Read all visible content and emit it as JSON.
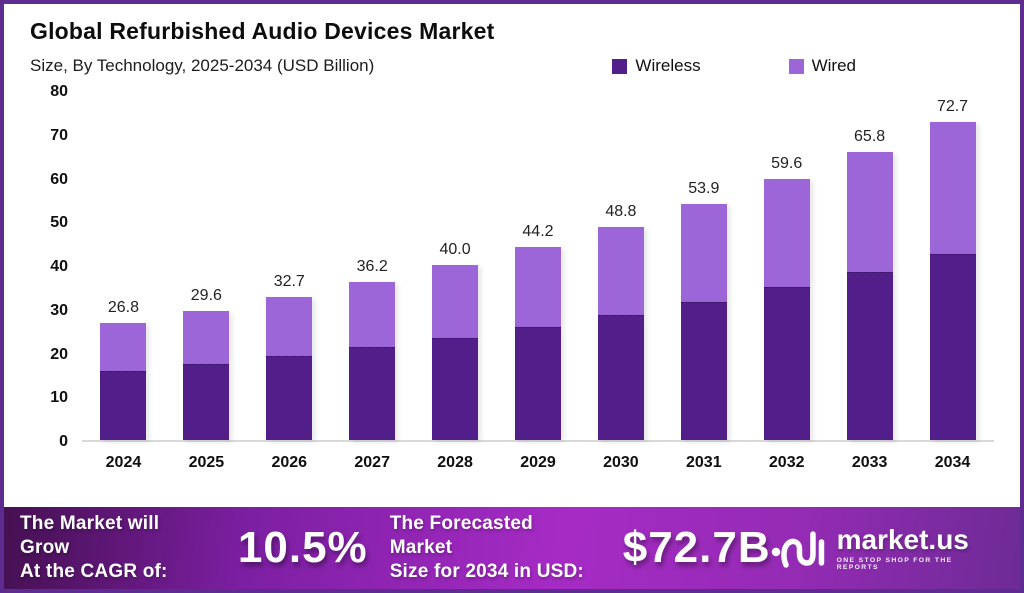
{
  "header": {
    "title": "Global Refurbished Audio Devices Market",
    "subtitle": "Size, By Technology, 2025-2034 (USD Billion)"
  },
  "legend": [
    {
      "label": "Wireless",
      "color": "#521e8a"
    },
    {
      "label": "Wired",
      "color": "#9d66d8"
    }
  ],
  "chart_data": {
    "type": "bar",
    "stacked": true,
    "title": "Global Refurbished Audio Devices Market",
    "subtitle": "Size, By Technology, 2025-2034 (USD Billion)",
    "unit": "USD Billion",
    "categories": [
      "2024",
      "2025",
      "2026",
      "2027",
      "2028",
      "2029",
      "2030",
      "2031",
      "2032",
      "2033",
      "2034"
    ],
    "series": [
      {
        "name": "Wireless",
        "color": "#521e8a",
        "values": [
          15.7,
          17.3,
          19.1,
          21.2,
          23.4,
          25.9,
          28.5,
          31.5,
          34.9,
          38.5,
          42.5
        ]
      },
      {
        "name": "Wired",
        "color": "#9d66d8",
        "values": [
          11.1,
          12.3,
          13.6,
          15.0,
          16.6,
          18.3,
          20.3,
          22.4,
          24.7,
          27.3,
          30.2
        ]
      }
    ],
    "totals": [
      26.8,
      29.6,
      32.7,
      36.2,
      40.0,
      44.2,
      48.8,
      53.9,
      59.6,
      65.8,
      72.7
    ],
    "total_labels": [
      "26.8",
      "29.6",
      "32.7",
      "36.2",
      "40.0",
      "44.2",
      "48.8",
      "53.9",
      "59.6",
      "65.8",
      "72.7"
    ],
    "ylim": [
      0,
      80
    ],
    "yticks": [
      0,
      10,
      20,
      30,
      40,
      50,
      60,
      70,
      80
    ],
    "grid": false,
    "legend_position": "top-right"
  },
  "footer": {
    "cagr_label_line1": "The Market will Grow",
    "cagr_label_line2": "At the CAGR of:",
    "cagr_value": "10.5%",
    "forecast_label_line1": "The Forecasted Market",
    "forecast_label_line2": "Size for 2034 in USD:",
    "forecast_value": "$72.7B",
    "brand": {
      "name": "market.us",
      "tagline": "ONE STOP SHOP FOR THE REPORTS"
    }
  },
  "colors": {
    "frame_border": "#5e2c91",
    "wireless": "#521e8a",
    "wired": "#9d66d8",
    "baseline": "#d9d9d9",
    "footer_gradient_start": "#451051",
    "footer_gradient_mid": "#a62bc5",
    "footer_gradient_end": "#6d2b95"
  }
}
